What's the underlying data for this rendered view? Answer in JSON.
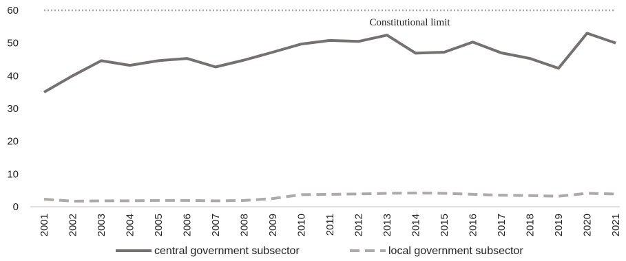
{
  "chart_data": {
    "type": "line",
    "title": "",
    "xlabel": "",
    "ylabel": "",
    "categories": [
      "2001",
      "2002",
      "2003",
      "2004",
      "2005",
      "2006",
      "2007",
      "2008",
      "2009",
      "2010",
      "2011",
      "2012",
      "2013",
      "2014",
      "2015",
      "2016",
      "2017",
      "2018",
      "2019",
      "2020",
      "2021"
    ],
    "ylim": [
      0,
      60
    ],
    "yticks": [
      0,
      10,
      20,
      30,
      40,
      50,
      60
    ],
    "grid": false,
    "legend_position": "bottom",
    "series": [
      {
        "name": "central government subsector",
        "style": "solid",
        "color": "#767171",
        "values": [
          35.0,
          40.0,
          44.6,
          43.2,
          44.6,
          45.3,
          42.7,
          44.8,
          47.2,
          49.7,
          50.8,
          50.5,
          52.4,
          46.9,
          47.2,
          50.3,
          47.0,
          45.3,
          42.3,
          53.0,
          50.0
        ]
      },
      {
        "name": "local government subsector",
        "style": "dashed",
        "color": "#aeaaaa",
        "values": [
          2.3,
          1.7,
          1.8,
          1.8,
          1.9,
          1.9,
          1.8,
          1.9,
          2.5,
          3.7,
          3.8,
          3.9,
          4.1,
          4.2,
          4.1,
          3.8,
          3.5,
          3.4,
          3.2,
          4.1,
          3.9
        ]
      }
    ],
    "reference_line": {
      "value": 60,
      "label": "Constitutional limit",
      "style": "dotted",
      "color": "#a6a6a6"
    }
  }
}
